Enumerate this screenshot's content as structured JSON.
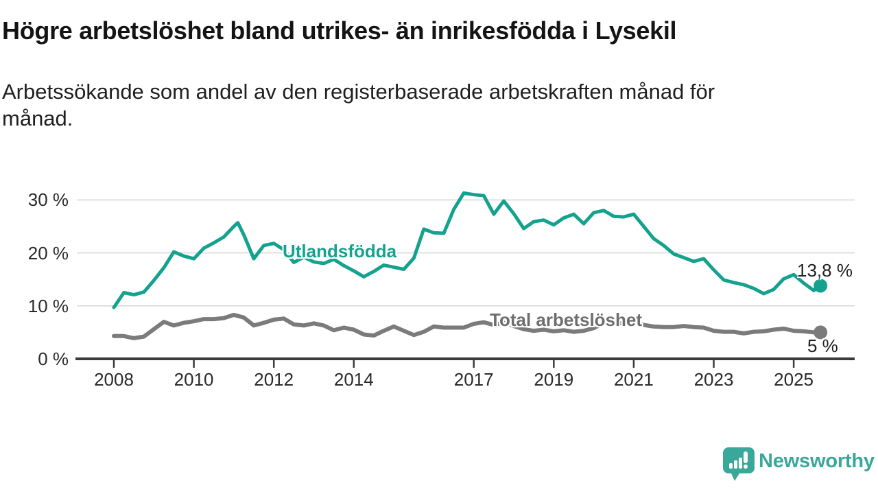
{
  "header": {
    "title": "Högre arbetslöshet bland utrikes- än inrikesfödda i Lysekil",
    "subtitle": "Arbetssökande som andel av den registerbaserade arbetskraften månad för månad."
  },
  "footer": {
    "brand": "Newsworthy"
  },
  "colors": {
    "accent_teal": "#14a28f",
    "line_gray": "#7b7b7b",
    "label_gray": "#6e6e6e",
    "grid": "#d9d9d9",
    "axis": "#3b3b3b",
    "text_dark": "#141414",
    "logo_teal": "#3aa79b"
  },
  "chart_data": {
    "type": "line",
    "title": "Högre arbetslöshet bland utrikes- än inrikesfödda i Lysekil",
    "subtitle": "Arbetssökande som andel av den registerbaserade arbetskraften månad för månad.",
    "xlabel": "",
    "ylabel": "",
    "unit": "%",
    "grid": "horizontal",
    "legend": "inline-labels",
    "x_range": [
      2007.9,
      2025.95
    ],
    "ylim": [
      0,
      32.5
    ],
    "x_ticks": [
      2008,
      2010,
      2012,
      2014,
      2017,
      2019,
      2021,
      2023,
      2025
    ],
    "x_tick_labels": [
      "2008",
      "2010",
      "2012",
      "2014",
      "2017",
      "2019",
      "2021",
      "2023",
      "2025"
    ],
    "y_ticks": [
      0,
      10,
      20,
      30
    ],
    "y_tick_labels": [
      "0 %",
      "10 %",
      "20 %",
      "30 %"
    ],
    "series": [
      {
        "name": "Utlandsfödda",
        "color": "#14a28f",
        "label_color": "#14a28f",
        "end_value": 13.8,
        "end_label": "13,8 %",
        "points": [
          [
            2008.0,
            9.7
          ],
          [
            2008.25,
            12.5
          ],
          [
            2008.5,
            12.1
          ],
          [
            2008.75,
            12.6
          ],
          [
            2009.0,
            14.8
          ],
          [
            2009.25,
            17.2
          ],
          [
            2009.5,
            20.2
          ],
          [
            2009.75,
            19.4
          ],
          [
            2010.0,
            18.9
          ],
          [
            2010.25,
            20.9
          ],
          [
            2010.5,
            21.9
          ],
          [
            2010.75,
            23.0
          ],
          [
            2011.0,
            25.0
          ],
          [
            2011.1,
            25.7
          ],
          [
            2011.25,
            23.4
          ],
          [
            2011.5,
            18.9
          ],
          [
            2011.75,
            21.4
          ],
          [
            2012.0,
            21.8
          ],
          [
            2012.25,
            20.6
          ],
          [
            2012.5,
            18.2
          ],
          [
            2012.75,
            19.2
          ],
          [
            2013.0,
            18.3
          ],
          [
            2013.25,
            18.0
          ],
          [
            2013.5,
            18.8
          ],
          [
            2013.75,
            17.6
          ],
          [
            2014.0,
            16.6
          ],
          [
            2014.25,
            15.5
          ],
          [
            2014.5,
            16.5
          ],
          [
            2014.75,
            17.7
          ],
          [
            2015.0,
            17.3
          ],
          [
            2015.25,
            16.9
          ],
          [
            2015.5,
            19.0
          ],
          [
            2015.75,
            24.5
          ],
          [
            2016.0,
            23.8
          ],
          [
            2016.25,
            23.7
          ],
          [
            2016.5,
            28.2
          ],
          [
            2016.75,
            31.3
          ],
          [
            2017.0,
            31.0
          ],
          [
            2017.25,
            30.8
          ],
          [
            2017.5,
            27.3
          ],
          [
            2017.75,
            29.8
          ],
          [
            2018.0,
            27.4
          ],
          [
            2018.25,
            24.6
          ],
          [
            2018.5,
            25.9
          ],
          [
            2018.75,
            26.2
          ],
          [
            2019.0,
            25.3
          ],
          [
            2019.25,
            26.6
          ],
          [
            2019.5,
            27.3
          ],
          [
            2019.75,
            25.5
          ],
          [
            2020.0,
            27.6
          ],
          [
            2020.25,
            28.0
          ],
          [
            2020.5,
            26.9
          ],
          [
            2020.75,
            26.8
          ],
          [
            2021.0,
            27.3
          ],
          [
            2021.25,
            25.0
          ],
          [
            2021.5,
            22.7
          ],
          [
            2021.75,
            21.4
          ],
          [
            2022.0,
            19.8
          ],
          [
            2022.25,
            19.1
          ],
          [
            2022.5,
            18.4
          ],
          [
            2022.75,
            18.9
          ],
          [
            2023.0,
            16.8
          ],
          [
            2023.25,
            14.9
          ],
          [
            2023.5,
            14.4
          ],
          [
            2023.75,
            14.0
          ],
          [
            2024.0,
            13.3
          ],
          [
            2024.25,
            12.3
          ],
          [
            2024.5,
            13.1
          ],
          [
            2024.75,
            15.1
          ],
          [
            2025.0,
            15.9
          ],
          [
            2025.25,
            14.3
          ],
          [
            2025.5,
            12.9
          ],
          [
            2025.67,
            13.8
          ]
        ]
      },
      {
        "name": "Total arbetslöshet",
        "color": "#7b7b7b",
        "label_color": "#6e6e6e",
        "end_value": 5,
        "end_label": "5 %",
        "points": [
          [
            2008.0,
            4.3
          ],
          [
            2008.25,
            4.3
          ],
          [
            2008.5,
            3.9
          ],
          [
            2008.75,
            4.2
          ],
          [
            2009.0,
            5.6
          ],
          [
            2009.25,
            7.0
          ],
          [
            2009.5,
            6.3
          ],
          [
            2009.75,
            6.8
          ],
          [
            2010.0,
            7.1
          ],
          [
            2010.25,
            7.5
          ],
          [
            2010.5,
            7.5
          ],
          [
            2010.75,
            7.7
          ],
          [
            2011.0,
            8.3
          ],
          [
            2011.25,
            7.8
          ],
          [
            2011.5,
            6.3
          ],
          [
            2011.75,
            6.8
          ],
          [
            2012.0,
            7.4
          ],
          [
            2012.25,
            7.6
          ],
          [
            2012.5,
            6.5
          ],
          [
            2012.75,
            6.3
          ],
          [
            2013.0,
            6.7
          ],
          [
            2013.25,
            6.3
          ],
          [
            2013.5,
            5.4
          ],
          [
            2013.75,
            5.9
          ],
          [
            2014.0,
            5.5
          ],
          [
            2014.25,
            4.6
          ],
          [
            2014.5,
            4.4
          ],
          [
            2014.75,
            5.3
          ],
          [
            2015.0,
            6.1
          ],
          [
            2015.25,
            5.3
          ],
          [
            2015.5,
            4.5
          ],
          [
            2015.75,
            5.1
          ],
          [
            2016.0,
            6.1
          ],
          [
            2016.25,
            5.9
          ],
          [
            2016.5,
            5.9
          ],
          [
            2016.75,
            5.9
          ],
          [
            2017.0,
            6.6
          ],
          [
            2017.25,
            6.9
          ],
          [
            2017.5,
            6.4
          ],
          [
            2017.75,
            6.8
          ],
          [
            2018.0,
            6.2
          ],
          [
            2018.25,
            5.6
          ],
          [
            2018.5,
            5.3
          ],
          [
            2018.75,
            5.5
          ],
          [
            2019.0,
            5.2
          ],
          [
            2019.25,
            5.4
          ],
          [
            2019.5,
            5.1
          ],
          [
            2019.75,
            5.3
          ],
          [
            2020.0,
            5.8
          ],
          [
            2020.25,
            6.8
          ],
          [
            2020.5,
            7.0
          ],
          [
            2020.75,
            6.6
          ],
          [
            2021.0,
            6.8
          ],
          [
            2021.25,
            6.4
          ],
          [
            2021.5,
            6.1
          ],
          [
            2021.75,
            6.0
          ],
          [
            2022.0,
            6.0
          ],
          [
            2022.25,
            6.2
          ],
          [
            2022.5,
            6.0
          ],
          [
            2022.75,
            5.9
          ],
          [
            2023.0,
            5.3
          ],
          [
            2023.25,
            5.1
          ],
          [
            2023.5,
            5.1
          ],
          [
            2023.75,
            4.8
          ],
          [
            2024.0,
            5.1
          ],
          [
            2024.25,
            5.2
          ],
          [
            2024.5,
            5.5
          ],
          [
            2024.75,
            5.7
          ],
          [
            2025.0,
            5.3
          ],
          [
            2025.25,
            5.2
          ],
          [
            2025.5,
            5.0
          ],
          [
            2025.67,
            5.0
          ]
        ]
      }
    ]
  }
}
